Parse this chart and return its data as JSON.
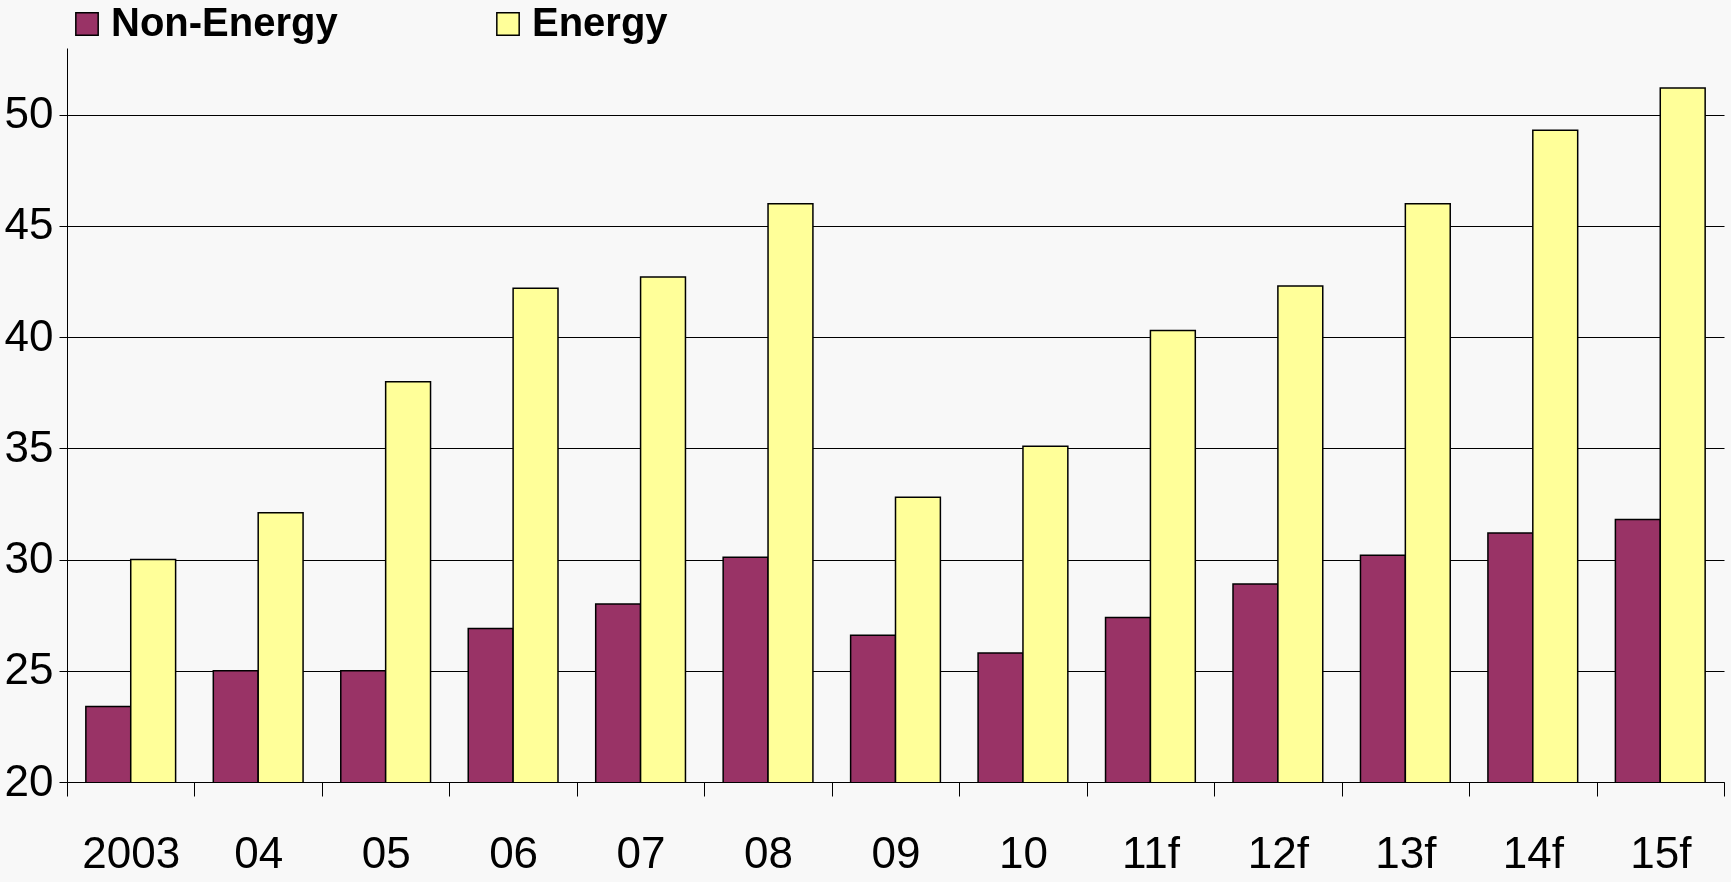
{
  "chart_data": {
    "type": "bar",
    "categories": [
      "2003",
      "04",
      "05",
      "06",
      "07",
      "08",
      "09",
      "10",
      "11f",
      "12f",
      "13f",
      "14f",
      "15f"
    ],
    "series": [
      {
        "name": "Non-Energy",
        "color": "#993366",
        "values": [
          23.4,
          25.0,
          25.0,
          26.9,
          28.0,
          30.1,
          26.6,
          25.8,
          27.4,
          28.9,
          30.2,
          31.2,
          31.8
        ]
      },
      {
        "name": "Energy",
        "color": "#ffff99",
        "values": [
          30.0,
          32.1,
          38.0,
          42.2,
          42.7,
          46.0,
          32.8,
          35.1,
          40.3,
          42.3,
          46.0,
          49.3,
          51.2
        ]
      }
    ],
    "ylim": [
      20,
      53
    ],
    "yticks": [
      20,
      25,
      30,
      35,
      40,
      45,
      50
    ],
    "grid": "y",
    "legend": "top"
  }
}
